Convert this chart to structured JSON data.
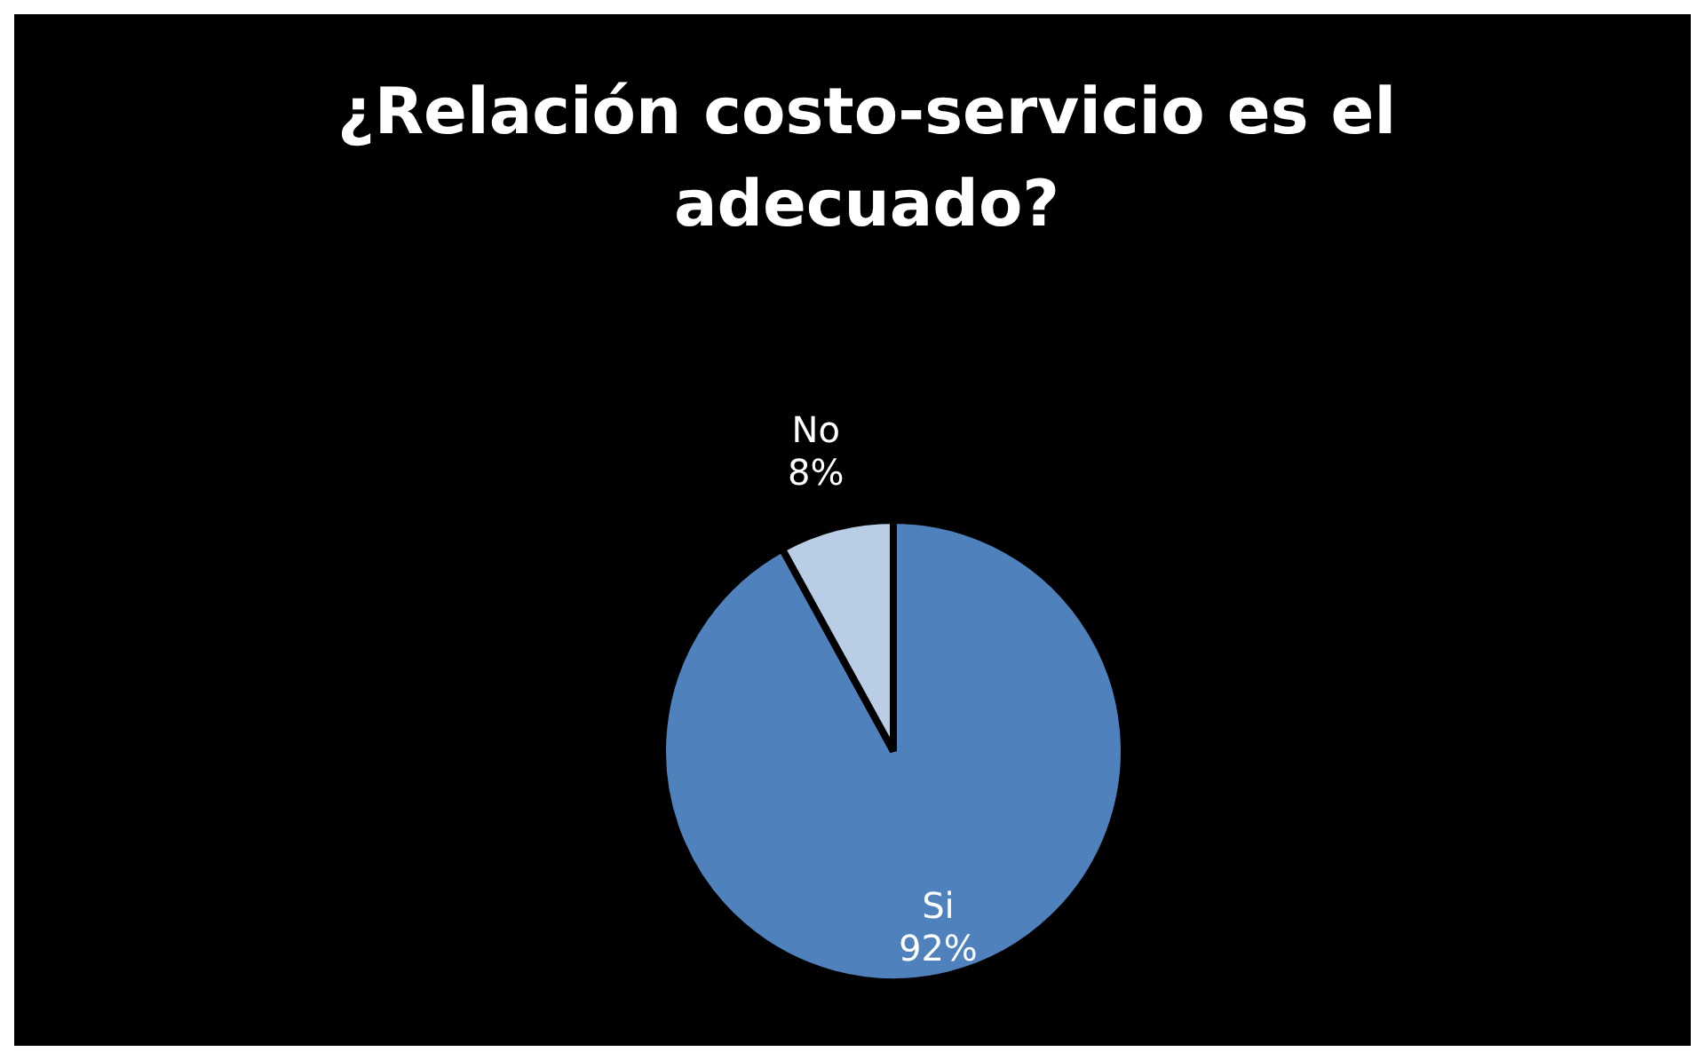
{
  "chart_data": {
    "type": "pie",
    "title": "¿Relación costo-servicio es el adecuado?",
    "categories": [
      "Si",
      "No"
    ],
    "values": [
      92,
      8
    ],
    "colors": [
      "#4f81bd",
      "#b9cde5"
    ],
    "value_labels": [
      "92%",
      "8%"
    ],
    "legend": false
  }
}
